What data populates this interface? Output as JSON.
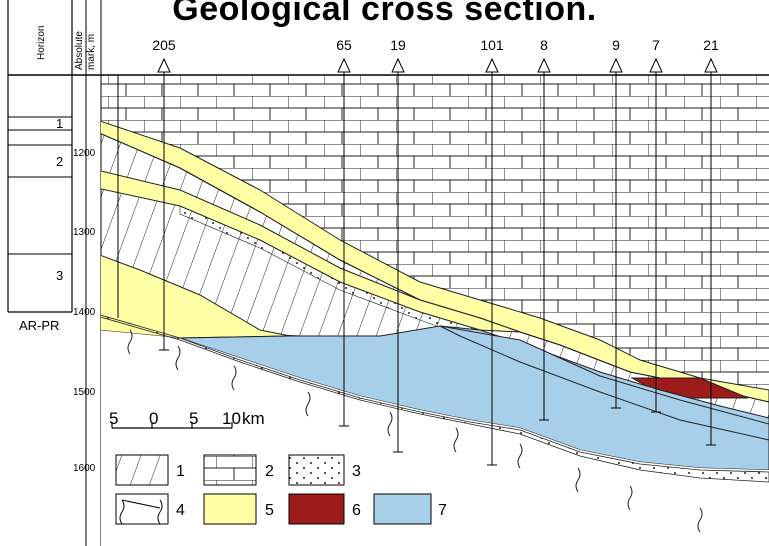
{
  "title": "Geological cross section.",
  "header": {
    "horizon_label": "Horizon",
    "absolute_label_1": "Absolute",
    "absolute_label_2": "mark, m"
  },
  "wells": [
    "205",
    "65",
    "19",
    "101",
    "8",
    "9",
    "7",
    "21"
  ],
  "depths": [
    "1200",
    "1300",
    "1400",
    "1500",
    "1600"
  ],
  "horizons": [
    "1",
    "2",
    "3"
  ],
  "basement_label": "AR-PR",
  "scale": {
    "ticks": [
      "5",
      "0",
      "5",
      "10"
    ],
    "unit": "km"
  },
  "legend": [
    {
      "id": "1",
      "label": "1",
      "fill": "#ffffff"
    },
    {
      "id": "2",
      "label": "2",
      "fill": "#ffffff"
    },
    {
      "id": "3",
      "label": "3",
      "fill": "#ffffff"
    },
    {
      "id": "4",
      "label": "4",
      "fill": "#ffffff"
    },
    {
      "id": "5",
      "label": "5",
      "fill": "#ffffa6"
    },
    {
      "id": "6",
      "label": "6",
      "fill": "#9e1b1b"
    },
    {
      "id": "7",
      "label": "7",
      "fill": "#a7cfe9"
    }
  ],
  "colors": {
    "yellow": "#ffffa6",
    "red": "#9e1b1b",
    "blue": "#a7cfe9"
  }
}
